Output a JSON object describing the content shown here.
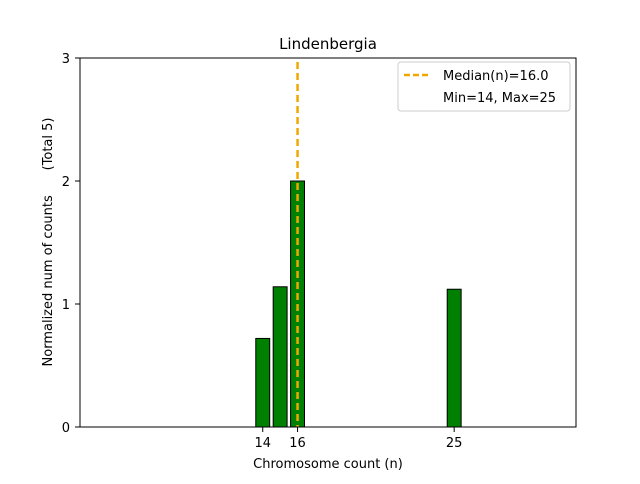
{
  "chart_data": {
    "type": "bar",
    "title": "Lindenbergia",
    "xlabel": "Chromosome count (n)",
    "ylabel": "Normalized num of counts      (Total 5)",
    "xlim": [
      3.5,
      32
    ],
    "ylim": [
      0,
      3
    ],
    "xticks": [
      14,
      16,
      25
    ],
    "xtick_labels": [
      "14",
      "16",
      "25"
    ],
    "yticks": [
      0,
      1,
      2,
      3
    ],
    "ytick_labels": [
      "0",
      "1",
      "2",
      "3"
    ],
    "bars": [
      {
        "x": 14,
        "value": 0.72
      },
      {
        "x": 15,
        "value": 1.14
      },
      {
        "x": 16,
        "value": 2.0
      },
      {
        "x": 25,
        "value": 1.12
      }
    ],
    "bar_width": 0.8,
    "bar_color": "#008000",
    "bar_edge_color": "#000000",
    "median_line": {
      "x": 16.0,
      "color": "#f0a800"
    },
    "legend": {
      "position": "top-right",
      "entries": [
        "Median(n)=16.0",
        "Min=14, Max=25"
      ]
    },
    "grid": false
  }
}
